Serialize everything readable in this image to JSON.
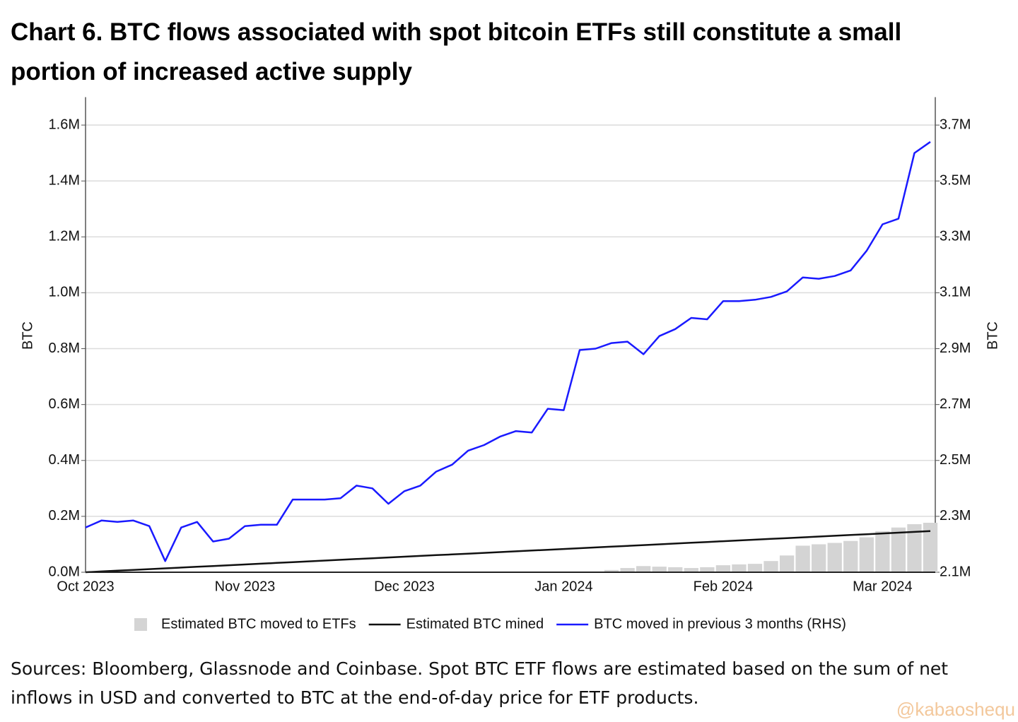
{
  "chart_data": {
    "type": "line",
    "title": "Chart 6. BTC flows associated with spot bitcoin ETFs still constitute a small portion of increased active supply",
    "ylabel": "BTC",
    "y2label": "BTC",
    "caption": "Sources: Bloomberg, Glassnode and Coinbase. Spot BTC ETF flows are estimated based on the sum of net inflows in USD and converted to BTC at the end-of-day price for ETF products.",
    "watermark": "@kabaoshequ",
    "grid": true,
    "legend": "bottom",
    "categories": [
      "Oct 2023",
      null,
      null,
      null,
      null,
      null,
      null,
      null,
      null,
      null,
      "Nov 2023",
      null,
      null,
      null,
      null,
      null,
      null,
      null,
      null,
      null,
      "Dec 2023",
      null,
      null,
      null,
      null,
      null,
      null,
      null,
      null,
      null,
      "Jan 2024",
      null,
      null,
      null,
      null,
      null,
      null,
      null,
      null,
      null,
      "Feb 2024",
      null,
      null,
      null,
      null,
      null,
      null,
      null,
      null,
      null,
      "Mar 2024",
      null,
      null,
      null
    ],
    "ylim": [
      0,
      1700000
    ],
    "yticks": [
      {
        "value": 0,
        "label": "0.0M"
      },
      {
        "value": 200000,
        "label": "0.2M"
      },
      {
        "value": 400000,
        "label": "0.4M"
      },
      {
        "value": 600000,
        "label": "0.6M"
      },
      {
        "value": 800000,
        "label": "0.8M"
      },
      {
        "value": 1000000,
        "label": "1.0M"
      },
      {
        "value": 1200000,
        "label": "1.2M"
      },
      {
        "value": 1400000,
        "label": "1.4M"
      },
      {
        "value": 1600000,
        "label": "1.6M"
      }
    ],
    "y2lim": [
      2100000,
      3800000
    ],
    "y2ticks": [
      {
        "value": 2100000,
        "label": "2.1M"
      },
      {
        "value": 2300000,
        "label": "2.3M"
      },
      {
        "value": 2500000,
        "label": "2.5M"
      },
      {
        "value": 2700000,
        "label": "2.7M"
      },
      {
        "value": 2900000,
        "label": "2.9M"
      },
      {
        "value": 3100000,
        "label": "3.1M"
      },
      {
        "value": 3300000,
        "label": "3.3M"
      },
      {
        "value": 3500000,
        "label": "3.5M"
      },
      {
        "value": 3700000,
        "label": "3.7M"
      }
    ],
    "series": [
      {
        "name": "Estimated BTC moved to ETFs",
        "type": "bar",
        "color": "#d4d4d4",
        "values": [
          0,
          0,
          0,
          0,
          0,
          0,
          0,
          0,
          0,
          0,
          0,
          0,
          0,
          0,
          0,
          0,
          0,
          0,
          0,
          0,
          0,
          0,
          0,
          0,
          0,
          0,
          0,
          0,
          0,
          0,
          0,
          0,
          0,
          8000,
          15000,
          22000,
          20000,
          18000,
          15000,
          18000,
          25000,
          28000,
          30000,
          40000,
          60000,
          95000,
          100000,
          105000,
          112000,
          125000,
          147000,
          160000,
          172000,
          177000
        ]
      },
      {
        "name": "Estimated BTC mined",
        "type": "line",
        "color": "#111111",
        "values": [
          0,
          2775,
          5550,
          8325,
          11100,
          13875,
          16650,
          19425,
          22200,
          24975,
          27750,
          30525,
          33300,
          36075,
          38850,
          41625,
          44400,
          47175,
          49950,
          52725,
          55500,
          58275,
          61050,
          63825,
          66600,
          69375,
          72150,
          74925,
          77700,
          80475,
          83250,
          86025,
          88800,
          91575,
          94350,
          97125,
          99900,
          102675,
          105450,
          108225,
          111000,
          113775,
          116550,
          119325,
          122100,
          124875,
          127650,
          130425,
          133200,
          135975,
          138750,
          141525,
          144300,
          147075
        ]
      },
      {
        "name": "BTC moved in previous 3 months (RHS)",
        "type": "line",
        "color": "#1a1aff",
        "axis": "y2",
        "values": [
          2260000,
          2285000,
          2280000,
          2285000,
          2265000,
          2140000,
          2260000,
          2280000,
          2210000,
          2220000,
          2265000,
          2270000,
          2270000,
          2360000,
          2360000,
          2360000,
          2365000,
          2410000,
          2400000,
          2345000,
          2390000,
          2410000,
          2460000,
          2485000,
          2535000,
          2555000,
          2585000,
          2605000,
          2600000,
          2685000,
          2680000,
          2895000,
          2900000,
          2920000,
          2925000,
          2880000,
          2945000,
          2970000,
          3010000,
          3005000,
          3070000,
          3070000,
          3075000,
          3085000,
          3105000,
          3155000,
          3150000,
          3160000,
          3180000,
          3250000,
          3345000,
          3365000,
          3600000,
          3640000
        ]
      }
    ]
  }
}
